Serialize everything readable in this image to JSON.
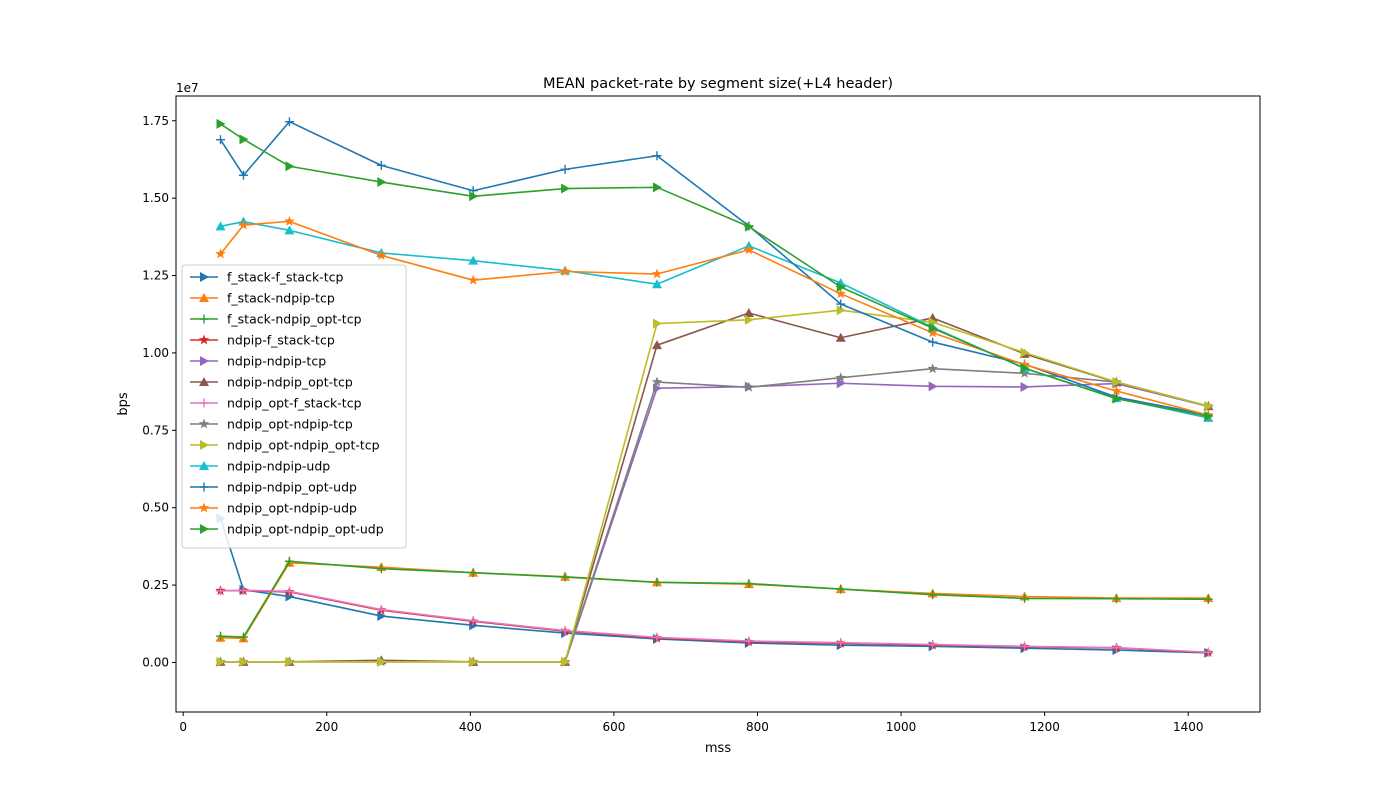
{
  "chart_data": {
    "type": "line",
    "title": "MEAN packet-rate by segment size(+L4 header)",
    "xlabel": "mss",
    "ylabel": "bps",
    "offset_label": "1e7",
    "xlim": [
      -10,
      1500
    ],
    "ylim": [
      -1600000,
      18300000
    ],
    "x_ticks": [
      0,
      200,
      400,
      600,
      800,
      1000,
      1200,
      1400
    ],
    "x_tick_labels": [
      "0",
      "200",
      "400",
      "600",
      "800",
      "1000",
      "1200",
      "1400"
    ],
    "y_ticks": [
      0,
      2500000,
      5000000,
      7500000,
      10000000,
      12500000,
      15000000,
      17500000
    ],
    "y_tick_labels": [
      "0.00",
      "0.25",
      "0.50",
      "0.75",
      "1.00",
      "1.25",
      "1.50",
      "1.75"
    ],
    "grid": false,
    "legend_position": "center-left",
    "x": [
      52,
      84,
      148,
      276,
      404,
      532,
      660,
      788,
      916,
      1044,
      1172,
      1300,
      1428
    ],
    "series": [
      {
        "name": "f_stack-f_stack-tcp",
        "color": "#1f77b4",
        "marker": "tri-right",
        "values": [
          4650000,
          2350000,
          2130000,
          1500000,
          1200000,
          950000,
          760000,
          630000,
          560000,
          520000,
          460000,
          400000,
          310000
        ]
      },
      {
        "name": "f_stack-ndpip-tcp",
        "color": "#ff7f0e",
        "marker": "tri-up",
        "values": [
          800000,
          780000,
          3220000,
          3080000,
          2900000,
          2770000,
          2590000,
          2530000,
          2370000,
          2230000,
          2130000,
          2080000,
          2080000
        ]
      },
      {
        "name": "f_stack-ndpip_opt-tcp",
        "color": "#2ca02c",
        "marker": "plus",
        "values": [
          850000,
          820000,
          3270000,
          3030000,
          2900000,
          2760000,
          2590000,
          2550000,
          2370000,
          2190000,
          2070000,
          2060000,
          2040000
        ]
      },
      {
        "name": "ndpip-f_stack-tcp",
        "color": "#d62728",
        "marker": "star",
        "values": [
          2320000,
          2320000,
          2280000,
          1690000,
          1330000,
          1010000,
          790000,
          670000,
          620000,
          560000,
          510000,
          470000,
          320000
        ]
      },
      {
        "name": "ndpip-ndpip-tcp",
        "color": "#9467bd",
        "marker": "tri-right",
        "values": [
          20000,
          20000,
          20000,
          20000,
          20000,
          20000,
          8860000,
          8910000,
          9020000,
          8920000,
          8900000,
          9010000,
          8270000
        ]
      },
      {
        "name": "ndpip-ndpip_opt-tcp",
        "color": "#8c564b",
        "marker": "tri-up",
        "values": [
          20000,
          20000,
          20000,
          70000,
          20000,
          20000,
          10250000,
          11290000,
          10490000,
          11130000,
          9970000,
          9050000,
          8280000
        ]
      },
      {
        "name": "ndpip_opt-f_stack-tcp",
        "color": "#e377c2",
        "marker": "plus",
        "values": [
          2310000,
          2330000,
          2300000,
          1710000,
          1350000,
          1030000,
          810000,
          690000,
          640000,
          580000,
          520000,
          480000,
          330000
        ]
      },
      {
        "name": "ndpip_opt-ndpip-tcp",
        "color": "#7f7f7f",
        "marker": "star",
        "values": [
          20000,
          20000,
          20000,
          20000,
          20000,
          20000,
          9060000,
          8890000,
          9200000,
          9490000,
          9340000,
          9060000,
          8280000
        ]
      },
      {
        "name": "ndpip_opt-ndpip_opt-tcp",
        "color": "#bcbd22",
        "marker": "tri-right",
        "values": [
          20000,
          20000,
          20000,
          20000,
          20000,
          20000,
          10950000,
          11070000,
          11380000,
          10990000,
          10010000,
          9060000,
          8280000
        ]
      },
      {
        "name": "ndpip-ndpip-udp",
        "color": "#17becf",
        "marker": "tri-up",
        "values": [
          14090000,
          14240000,
          13960000,
          13230000,
          12980000,
          12660000,
          12220000,
          13460000,
          12260000,
          10830000,
          9500000,
          8540000,
          7900000
        ]
      },
      {
        "name": "ndpip-ndpip_opt-udp",
        "color": "#1f77b4",
        "marker": "plus",
        "values": [
          16890000,
          15740000,
          17470000,
          16060000,
          15240000,
          15930000,
          16370000,
          14100000,
          11580000,
          10350000,
          9640000,
          8570000,
          8000000
        ]
      },
      {
        "name": "ndpip_opt-ndpip-udp",
        "color": "#ff7f0e",
        "marker": "star",
        "values": [
          13200000,
          14130000,
          14250000,
          13150000,
          12350000,
          12630000,
          12550000,
          13330000,
          11910000,
          10650000,
          9620000,
          8770000,
          7990000
        ]
      },
      {
        "name": "ndpip_opt-ndpip_opt-udp",
        "color": "#2ca02c",
        "marker": "tri-right",
        "values": [
          17400000,
          16900000,
          16030000,
          15520000,
          15060000,
          15310000,
          15350000,
          14080000,
          12130000,
          10800000,
          9510000,
          8520000,
          7960000
        ]
      }
    ]
  }
}
